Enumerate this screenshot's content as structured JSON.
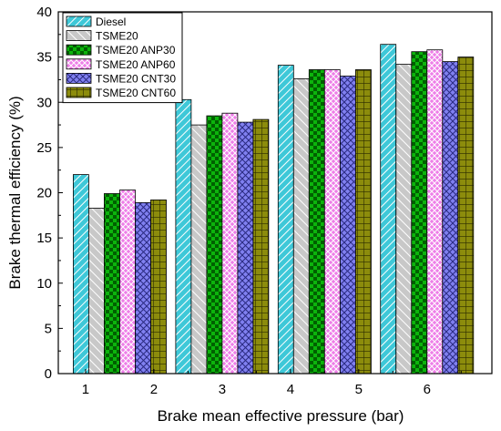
{
  "chart_data": {
    "type": "bar",
    "xlabel": "Brake mean effective pressure (bar)",
    "ylabel": "Brake thermal efficiency (%)",
    "ylim": [
      0,
      40
    ],
    "yticks": [
      0,
      5,
      10,
      15,
      20,
      25,
      30,
      35,
      40
    ],
    "xticks": [
      "1",
      "2",
      "3",
      "4",
      "5",
      "6"
    ],
    "groups": [
      "1.5",
      "3",
      "4.5",
      "6"
    ],
    "grid": false,
    "legend_position": "top-left",
    "series": [
      {
        "name": "Diesel",
        "color": "#3ec8d8",
        "pattern": "hatch-diagonal",
        "values": [
          22.0,
          30.3,
          34.1,
          36.4
        ]
      },
      {
        "name": "TSME20",
        "color": "#c8c8c8",
        "pattern": "hatch-diagonal-wide",
        "values": [
          18.3,
          27.5,
          32.6,
          34.2
        ]
      },
      {
        "name": "TSME20 ANP30",
        "color": "#0cb40c",
        "pattern": "checker",
        "values": [
          19.9,
          28.5,
          33.6,
          35.6
        ]
      },
      {
        "name": "TSME20 ANP60",
        "color": "#ee7ee8",
        "pattern": "crosshatch-diagonal",
        "values": [
          20.3,
          28.8,
          33.6,
          35.8
        ]
      },
      {
        "name": "TSME20 CNT30",
        "color": "#8080f0",
        "pattern": "crosshatch-diagonal",
        "values": [
          18.9,
          27.8,
          32.9,
          34.5
        ]
      },
      {
        "name": "TSME20 CNT60",
        "color": "#8c8c0c",
        "pattern": "grid",
        "values": [
          19.2,
          28.1,
          33.6,
          35.0
        ]
      }
    ]
  }
}
